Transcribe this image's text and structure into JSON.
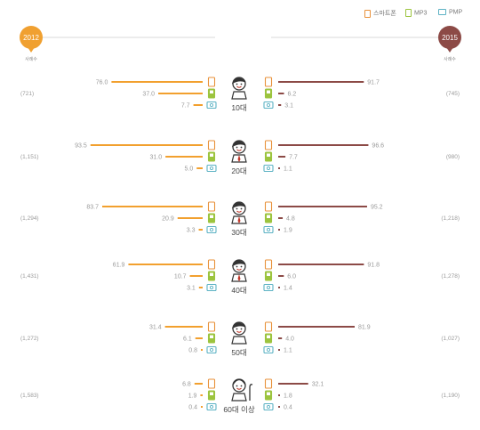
{
  "chart_data": {
    "type": "bar",
    "title": "",
    "legend": {
      "placement": "top-right",
      "items": [
        {
          "name": "스마트폰",
          "color": "#E8913A"
        },
        {
          "name": "MP3",
          "color": "#9CC43E"
        },
        {
          "name": "PMP",
          "color": "#5CB2C4"
        }
      ]
    },
    "years": {
      "left": {
        "label": "2012",
        "sub": "사례수",
        "color": "#F0A030"
      },
      "right": {
        "label": "2015",
        "sub": "사례수",
        "color": "#8C4A46"
      }
    },
    "bar_colors": {
      "left": "#F2A02E",
      "right": "#8C4A46"
    },
    "xlim": [
      0,
      100
    ],
    "series": [
      {
        "name": "스마트폰",
        "icon": "phone-icon"
      },
      {
        "name": "MP3",
        "icon": "mp3-icon"
      },
      {
        "name": "PMP",
        "icon": "pmp-icon"
      }
    ],
    "groups": [
      {
        "age": "10대",
        "n2012": "(721)",
        "n2015": "(745)",
        "v2012": [
          76.0,
          37.0,
          7.7
        ],
        "v2015": [
          91.7,
          6.2,
          3.1
        ],
        "l2012": [
          "76.0",
          "37.0",
          "7.7"
        ],
        "l2015": [
          "91.7",
          "6.2",
          "3.1"
        ]
      },
      {
        "age": "20대",
        "n2012": "(1,151)",
        "n2015": "(980)",
        "v2012": [
          93.5,
          31.0,
          5.0
        ],
        "v2015": [
          96.6,
          7.7,
          1.1
        ],
        "l2012": [
          "93.5",
          "31.0",
          "5.0"
        ],
        "l2015": [
          "96.6",
          "7.7",
          "1.1"
        ]
      },
      {
        "age": "30대",
        "n2012": "(1,294)",
        "n2015": "(1,218)",
        "v2012": [
          83.7,
          20.9,
          3.3
        ],
        "v2015": [
          95.2,
          4.8,
          1.9
        ],
        "l2012": [
          "83.7",
          "20.9",
          "3.3"
        ],
        "l2015": [
          "95.2",
          "4.8",
          "1.9"
        ]
      },
      {
        "age": "40대",
        "n2012": "(1,431)",
        "n2015": "(1,278)",
        "v2012": [
          61.9,
          10.7,
          3.1
        ],
        "v2015": [
          91.8,
          6.0,
          1.4
        ],
        "l2012": [
          "61.9",
          "10.7",
          "3.1"
        ],
        "l2015": [
          "91.8",
          "6.0",
          "1.4"
        ]
      },
      {
        "age": "50대",
        "n2012": "(1,272)",
        "n2015": "(1,027)",
        "v2012": [
          31.4,
          6.1,
          0.8
        ],
        "v2015": [
          81.9,
          4.0,
          1.1
        ],
        "l2012": [
          "31.4",
          "6.1",
          "0.8"
        ],
        "l2015": [
          "81.9",
          "4.0",
          "1.1"
        ]
      },
      {
        "age": "60대 이상",
        "n2012": "(1,583)",
        "n2015": "(1,190)",
        "v2012": [
          6.8,
          1.9,
          0.4
        ],
        "v2015": [
          32.1,
          1.8,
          0.4
        ],
        "l2012": [
          "6.8",
          "1.9",
          "0.4"
        ],
        "l2015": [
          "32.1",
          "1.8",
          "0.4"
        ]
      }
    ]
  }
}
